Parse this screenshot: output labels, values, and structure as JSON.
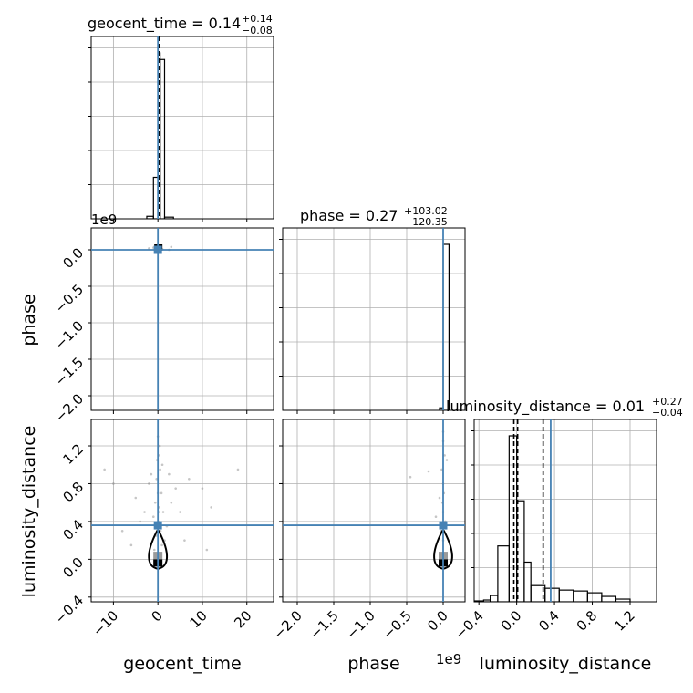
{
  "colors": {
    "truth": "#4682b4",
    "hist": "#000000",
    "grid": "#b0b0b0",
    "scatter": "#808080",
    "median": "#000000"
  },
  "chart_data": {
    "type": "corner",
    "parameters": [
      "geocent_time",
      "phase",
      "luminosity_distance"
    ],
    "axis_labels": {
      "geocent_time": "geocent_time",
      "phase": "phase",
      "luminosity_distance": "luminosity_distance"
    },
    "titles": {
      "geocent_time": {
        "prefix": "geocent_time = ",
        "value": "0.14",
        "plus": "+0.14",
        "minus": "−0.08"
      },
      "phase": {
        "prefix": "phase = ",
        "value": "0.27",
        "plus": "+103.02",
        "minus": "−120.35"
      },
      "luminosity_distance": {
        "prefix": "luminosity_distance = ",
        "value": "0.01",
        "plus": "+0.27",
        "minus": "−0.04"
      }
    },
    "truths": {
      "geocent_time": 0.0,
      "phase": 0.0,
      "luminosity_distance": 0.36
    },
    "ranges": {
      "geocent_time": [
        -15,
        26
      ],
      "phase": [
        -2200000000.0,
        300000000.0
      ],
      "luminosity_distance": [
        -0.45,
        1.48
      ]
    },
    "scale_offsets": {
      "phase": "1e9"
    },
    "ticks": {
      "geocent_time": {
        "values": [
          -10,
          0,
          10,
          20
        ],
        "labels": [
          "−10",
          "0",
          "10",
          "20"
        ]
      },
      "phase": {
        "values": [
          -2000000000.0,
          -1500000000.0,
          -1000000000.0,
          -500000000.0,
          0.0
        ],
        "labels": [
          "−2.0",
          "−1.5",
          "−1.0",
          "−0.5",
          "0.0"
        ]
      },
      "luminosity_distance": {
        "values": [
          -0.4,
          0.0,
          0.4,
          0.8,
          1.2
        ],
        "labels": [
          "−0.4",
          "0.0",
          "0.4",
          "0.8",
          "1.2"
        ]
      }
    },
    "quantiles": {
      "geocent_time": [
        0.06,
        0.14,
        0.28
      ],
      "luminosity_distance": [
        -0.03,
        0.01,
        0.28
      ]
    },
    "histograms": {
      "geocent_time": {
        "edges": [
          -2.5,
          -1.0,
          0.0,
          0.5,
          1.5,
          3.5
        ],
        "density": [
          0.015,
          0.25,
          1.0,
          0.96,
          0.01
        ]
      },
      "phase": {
        "edges": [
          -250000000.0,
          -50000000.0,
          0.0,
          80000000.0,
          150000000.0
        ],
        "density": [
          0.0,
          0.015,
          1.0,
          0.0
        ]
      },
      "luminosity_distance": {
        "edges": [
          -0.45,
          -0.35,
          -0.28,
          -0.2,
          -0.08,
          0.0,
          0.08,
          0.15,
          0.3,
          0.45,
          0.6,
          0.75,
          0.9,
          1.05,
          1.2,
          1.3
        ],
        "density": [
          0.005,
          0.01,
          0.035,
          0.31,
          0.92,
          0.56,
          0.22,
          0.09,
          0.075,
          0.065,
          0.06,
          0.05,
          0.03,
          0.015,
          0.0
        ]
      }
    },
    "scatter_points": {
      "geocent_time_vs_luminosity_distance": [
        [
          0.2,
          1.1
        ],
        [
          0.5,
          0.95
        ],
        [
          -0.3,
          0.85
        ],
        [
          0.8,
          0.7
        ],
        [
          -0.6,
          0.6
        ],
        [
          0.3,
          0.55
        ],
        [
          1.2,
          0.5
        ],
        [
          -1.0,
          0.45
        ],
        [
          0.1,
          0.4
        ],
        [
          0.6,
          0.3
        ],
        [
          -0.4,
          0.25
        ],
        [
          1.5,
          0.2
        ],
        [
          2.5,
          0.9
        ],
        [
          -2.0,
          0.8
        ],
        [
          3.0,
          0.6
        ],
        [
          -3.0,
          0.5
        ],
        [
          4.0,
          0.75
        ],
        [
          -5.0,
          0.65
        ],
        [
          6.0,
          0.2
        ],
        [
          -8.0,
          0.3
        ],
        [
          10.0,
          0.75
        ],
        [
          -10.0,
          0.8
        ],
        [
          12.0,
          0.55
        ],
        [
          18.0,
          0.95
        ],
        [
          -12.0,
          0.95
        ],
        [
          0.0,
          1.3
        ],
        [
          0.4,
          1.2
        ],
        [
          -0.2,
          1.05
        ],
        [
          1.0,
          1.0
        ],
        [
          -1.5,
          0.9
        ],
        [
          2.0,
          0.35
        ],
        [
          0.9,
          0.15
        ],
        [
          -0.8,
          0.1
        ],
        [
          11.0,
          0.1
        ],
        [
          5.0,
          0.5
        ],
        [
          -4.0,
          0.4
        ],
        [
          7.0,
          0.85
        ],
        [
          -6.0,
          0.15
        ],
        [
          0.0,
          0.7
        ],
        [
          0.15,
          0.5
        ]
      ],
      "phase_vs_luminosity_distance": [
        [
          0.0,
          1.25
        ],
        [
          20000000.0,
          1.1
        ],
        [
          -20000000.0,
          0.95
        ],
        [
          0.0,
          0.8
        ],
        [
          10000000.0,
          0.7
        ],
        [
          -10000000.0,
          0.6
        ],
        [
          0.0,
          0.5
        ],
        [
          30000000.0,
          0.4
        ],
        [
          -30000000.0,
          0.3
        ],
        [
          0.0,
          0.2
        ],
        [
          -450000000.0,
          0.87
        ],
        [
          -200000000.0,
          0.93
        ],
        [
          50000000.0,
          1.05
        ],
        [
          -50000000.0,
          0.65
        ],
        [
          0.0,
          1.35
        ],
        [
          -100000000.0,
          0.45
        ]
      ],
      "geocent_time_vs_phase": [
        [
          0.0,
          20000000.0
        ],
        [
          0.5,
          30000000.0
        ],
        [
          -0.5,
          0.0
        ],
        [
          1.0,
          10000000.0
        ],
        [
          3.0,
          40000000.0
        ],
        [
          -2.0,
          20000000.0
        ],
        [
          2.5,
          0.0
        ],
        [
          -1.0,
          30000000.0
        ]
      ]
    },
    "grid": true
  }
}
